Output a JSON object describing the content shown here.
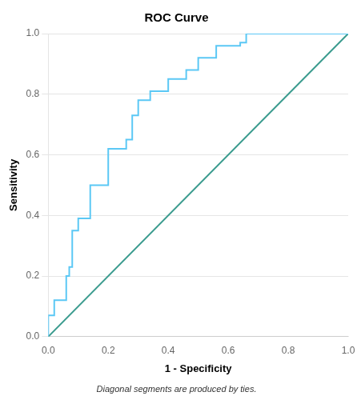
{
  "chart_data": {
    "type": "line",
    "title": "ROC Curve",
    "xlabel": "1 - Specificity",
    "ylabel": "Sensitivity",
    "footnote": "Diagonal segments are produced by ties.",
    "series": [
      {
        "color": "#3a9b8e",
        "x": [
          0.0,
          1.0
        ],
        "values": [
          0.0,
          1.0
        ]
      },
      {
        "color": "#5bc8f5",
        "x": [
          0.0,
          0.0,
          0.02,
          0.02,
          0.04,
          0.06,
          0.06,
          0.07,
          0.07,
          0.08,
          0.08,
          0.1,
          0.1,
          0.12,
          0.14,
          0.14,
          0.18,
          0.2,
          0.2,
          0.24,
          0.26,
          0.26,
          0.28,
          0.28,
          0.3,
          0.3,
          0.32,
          0.34,
          0.34,
          0.38,
          0.4,
          0.4,
          0.44,
          0.46,
          0.46,
          0.5,
          0.5,
          0.54,
          0.56,
          0.56,
          0.6,
          0.62,
          0.64,
          0.64,
          0.66,
          0.66,
          1.0
        ],
        "values": [
          0.0,
          0.07,
          0.07,
          0.12,
          0.12,
          0.12,
          0.2,
          0.2,
          0.23,
          0.23,
          0.35,
          0.35,
          0.39,
          0.39,
          0.39,
          0.5,
          0.5,
          0.5,
          0.62,
          0.62,
          0.62,
          0.65,
          0.65,
          0.73,
          0.73,
          0.78,
          0.78,
          0.78,
          0.81,
          0.81,
          0.81,
          0.85,
          0.85,
          0.85,
          0.88,
          0.88,
          0.92,
          0.92,
          0.92,
          0.96,
          0.96,
          0.96,
          0.96,
          0.97,
          0.97,
          1.0,
          1.0
        ]
      }
    ],
    "xlim": [
      0.0,
      1.0
    ],
    "ylim": [
      0.0,
      1.0
    ],
    "xticks": [
      {
        "value": 0.0,
        "label": "0.0"
      },
      0.2,
      0.4,
      0.6,
      0.8,
      {
        "value": 1.0,
        "label": "1.0"
      }
    ],
    "yticks": [
      {
        "value": 0.0,
        "label": "0.0"
      },
      0.2,
      0.4,
      0.6,
      0.8,
      {
        "value": 1.0,
        "label": "1.0"
      }
    ],
    "grid": "y"
  }
}
